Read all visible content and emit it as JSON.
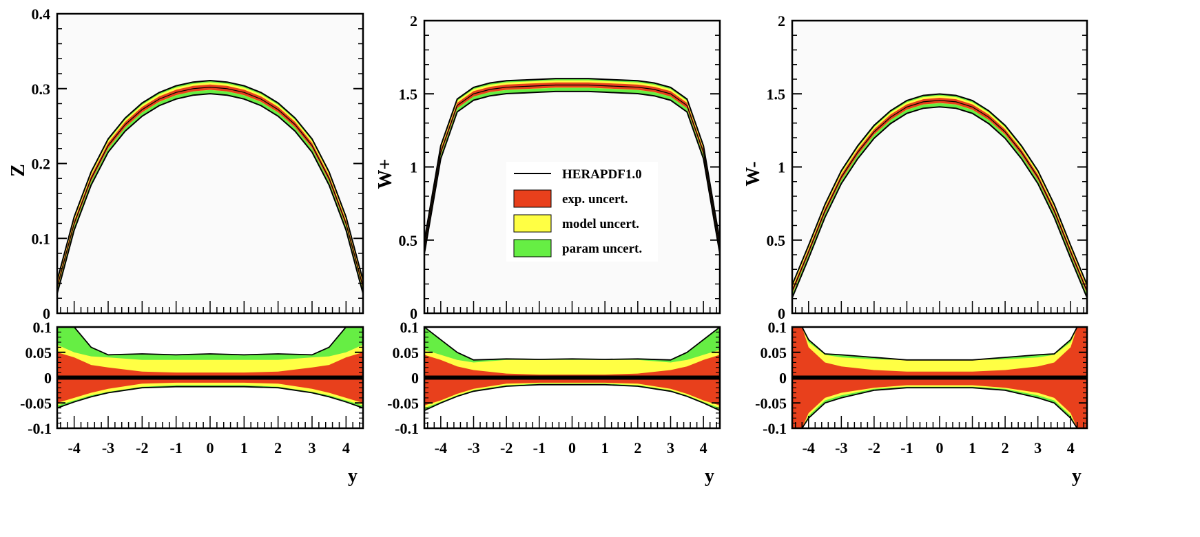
{
  "colors": {
    "exp": "#e8401c",
    "model": "#ffff44",
    "param": "#66ee44",
    "line": "#000000",
    "plot_bg": "#fafafa",
    "ratio_bg": "#ffffff"
  },
  "legend": {
    "entries": [
      {
        "label": "HERAPDF1.0",
        "kind": "line"
      },
      {
        "label": "exp. uncert.",
        "kind": "exp"
      },
      {
        "label": "model uncert.",
        "kind": "model"
      },
      {
        "label": "param uncert.",
        "kind": "param"
      }
    ]
  },
  "chart_data": [
    {
      "type": "line",
      "panel": "Z",
      "ylabel": "Z",
      "xlabel": "y",
      "xlim": [
        -4.5,
        4.5
      ],
      "xticks": [
        "-4",
        "-3",
        "-2",
        "-1",
        "0",
        "1",
        "2",
        "3",
        "4"
      ],
      "ylim": [
        0,
        0.4
      ],
      "yticks": [
        "0",
        "0.1",
        "0.2",
        "0.3",
        "0.4"
      ],
      "x": [
        -4.5,
        -4,
        -3.5,
        -3,
        -2.5,
        -2,
        -1.5,
        -1,
        -0.5,
        0,
        0.5,
        1,
        1.5,
        2,
        2.5,
        3,
        3.5,
        4,
        4.5
      ],
      "central": [
        0.035,
        0.12,
        0.18,
        0.224,
        0.252,
        0.272,
        0.286,
        0.295,
        0.3,
        0.302,
        0.3,
        0.295,
        0.286,
        0.272,
        0.252,
        0.224,
        0.18,
        0.12,
        0.035
      ],
      "ratio": {
        "ylim": [
          -0.1,
          0.1
        ],
        "yticks": [
          "-0.1",
          "-0.05",
          "0",
          "0.05",
          "0.1"
        ],
        "x": [
          -4.5,
          -4,
          -3.5,
          -3,
          -2,
          -1,
          0,
          1,
          2,
          3,
          3.5,
          4,
          4.5
        ],
        "exp": {
          "up": [
            0.05,
            0.04,
            0.025,
            0.02,
            0.012,
            0.01,
            0.01,
            0.01,
            0.012,
            0.02,
            0.025,
            0.04,
            0.05
          ],
          "down": [
            -0.05,
            -0.04,
            -0.03,
            -0.022,
            -0.012,
            -0.01,
            -0.01,
            -0.01,
            -0.012,
            -0.022,
            -0.03,
            -0.04,
            -0.05
          ]
        },
        "model": {
          "up": [
            0.065,
            0.05,
            0.042,
            0.04,
            0.035,
            0.035,
            0.035,
            0.035,
            0.035,
            0.04,
            0.042,
            0.05,
            0.065
          ],
          "down": [
            -0.055,
            -0.045,
            -0.035,
            -0.028,
            -0.018,
            -0.015,
            -0.015,
            -0.015,
            -0.018,
            -0.028,
            -0.035,
            -0.045,
            -0.055
          ]
        },
        "param": {
          "up": [
            0.1,
            0.1,
            0.06,
            0.045,
            0.047,
            0.045,
            0.047,
            0.045,
            0.047,
            0.045,
            0.06,
            0.1,
            0.1
          ],
          "down": [
            -0.06,
            -0.048,
            -0.038,
            -0.03,
            -0.02,
            -0.018,
            -0.018,
            -0.018,
            -0.02,
            -0.03,
            -0.038,
            -0.048,
            -0.06
          ]
        }
      }
    },
    {
      "type": "line",
      "panel": "W+",
      "ylabel": "W+",
      "xlabel": "y",
      "xlim": [
        -4.5,
        4.5
      ],
      "xticks": [
        "-4",
        "-3",
        "-2",
        "-1",
        "0",
        "1",
        "2",
        "3",
        "4"
      ],
      "ylim": [
        0,
        2
      ],
      "yticks": [
        "0",
        "0.5",
        "1",
        "1.5",
        "2"
      ],
      "x": [
        -4.5,
        -4,
        -3.5,
        -3,
        -2.5,
        -2,
        -1.5,
        -1,
        -0.5,
        0,
        0.5,
        1,
        1.5,
        2,
        2.5,
        3,
        3.5,
        4,
        4.5
      ],
      "central": [
        0.45,
        1.1,
        1.42,
        1.5,
        1.53,
        1.545,
        1.55,
        1.555,
        1.56,
        1.56,
        1.56,
        1.555,
        1.55,
        1.545,
        1.53,
        1.5,
        1.42,
        1.1,
        0.45
      ],
      "ratio": {
        "ylim": [
          -0.1,
          0.1
        ],
        "yticks": [
          "-0.1",
          "-0.05",
          "0",
          "0.05",
          "0.1"
        ],
        "x": [
          -4.5,
          -4,
          -3.5,
          -3,
          -2,
          -1,
          0,
          1,
          2,
          3,
          3.5,
          4,
          4.5
        ],
        "exp": {
          "up": [
            0.045,
            0.035,
            0.022,
            0.015,
            0.008,
            0.006,
            0.006,
            0.006,
            0.008,
            0.015,
            0.022,
            0.035,
            0.045
          ],
          "down": [
            -0.055,
            -0.045,
            -0.032,
            -0.022,
            -0.012,
            -0.01,
            -0.01,
            -0.01,
            -0.012,
            -0.022,
            -0.032,
            -0.045,
            -0.055
          ]
        },
        "model": {
          "up": [
            0.055,
            0.045,
            0.035,
            0.03,
            0.035,
            0.035,
            0.035,
            0.035,
            0.035,
            0.03,
            0.035,
            0.045,
            0.055
          ],
          "down": [
            -0.06,
            -0.048,
            -0.035,
            -0.025,
            -0.015,
            -0.012,
            -0.012,
            -0.012,
            -0.015,
            -0.025,
            -0.035,
            -0.048,
            -0.06
          ]
        },
        "param": {
          "up": [
            0.1,
            0.075,
            0.05,
            0.035,
            0.037,
            0.036,
            0.037,
            0.036,
            0.037,
            0.035,
            0.05,
            0.075,
            0.1
          ],
          "down": [
            -0.065,
            -0.05,
            -0.037,
            -0.027,
            -0.017,
            -0.014,
            -0.014,
            -0.014,
            -0.017,
            -0.027,
            -0.037,
            -0.05,
            -0.065
          ]
        }
      }
    },
    {
      "type": "line",
      "panel": "W-",
      "ylabel": "W-",
      "xlabel": "y",
      "xlim": [
        -4.5,
        4.5
      ],
      "xticks": [
        "-4",
        "-3",
        "-2",
        "-1",
        "0",
        "1",
        "2",
        "3",
        "4"
      ],
      "ylim": [
        0,
        2
      ],
      "yticks": [
        "0",
        "0.5",
        "1",
        "1.5",
        "2"
      ],
      "x": [
        -4.5,
        -4,
        -3.5,
        -3,
        -2.5,
        -2,
        -1.5,
        -1,
        -0.5,
        0,
        0.5,
        1,
        1.5,
        2,
        2.5,
        3,
        3.5,
        4,
        4.5
      ],
      "central": [
        0.15,
        0.42,
        0.7,
        0.93,
        1.1,
        1.24,
        1.34,
        1.41,
        1.445,
        1.455,
        1.445,
        1.41,
        1.34,
        1.24,
        1.1,
        0.93,
        0.7,
        0.42,
        0.15
      ],
      "ratio": {
        "ylim": [
          -0.1,
          0.1
        ],
        "yticks": [
          "-0.1",
          "-0.05",
          "0",
          "0.05",
          "0.1"
        ],
        "x": [
          -4.5,
          -4.2,
          -4,
          -3.5,
          -3,
          -2,
          -1,
          0,
          1,
          2,
          3,
          3.5,
          4,
          4.2,
          4.5
        ],
        "exp": {
          "up": [
            0.1,
            0.1,
            0.06,
            0.03,
            0.022,
            0.015,
            0.012,
            0.012,
            0.012,
            0.015,
            0.022,
            0.03,
            0.06,
            0.1,
            0.1
          ],
          "down": [
            -0.1,
            -0.1,
            -0.07,
            -0.04,
            -0.03,
            -0.02,
            -0.015,
            -0.015,
            -0.015,
            -0.02,
            -0.03,
            -0.04,
            -0.07,
            -0.1,
            -0.1
          ]
        },
        "model": {
          "up": [
            0.1,
            0.1,
            0.07,
            0.045,
            0.04,
            0.036,
            0.035,
            0.035,
            0.035,
            0.036,
            0.04,
            0.045,
            0.07,
            0.1,
            0.1
          ],
          "down": [
            -0.1,
            -0.1,
            -0.075,
            -0.045,
            -0.035,
            -0.022,
            -0.018,
            -0.018,
            -0.018,
            -0.022,
            -0.035,
            -0.045,
            -0.075,
            -0.1,
            -0.1
          ]
        },
        "param": {
          "up": [
            0.1,
            0.1,
            0.075,
            0.047,
            0.045,
            0.04,
            0.035,
            0.035,
            0.035,
            0.04,
            0.045,
            0.047,
            0.075,
            0.1,
            0.1
          ],
          "down": [
            -0.1,
            -0.1,
            -0.08,
            -0.05,
            -0.04,
            -0.025,
            -0.02,
            -0.02,
            -0.02,
            -0.025,
            -0.04,
            -0.05,
            -0.08,
            -0.1,
            -0.1
          ]
        }
      }
    }
  ]
}
